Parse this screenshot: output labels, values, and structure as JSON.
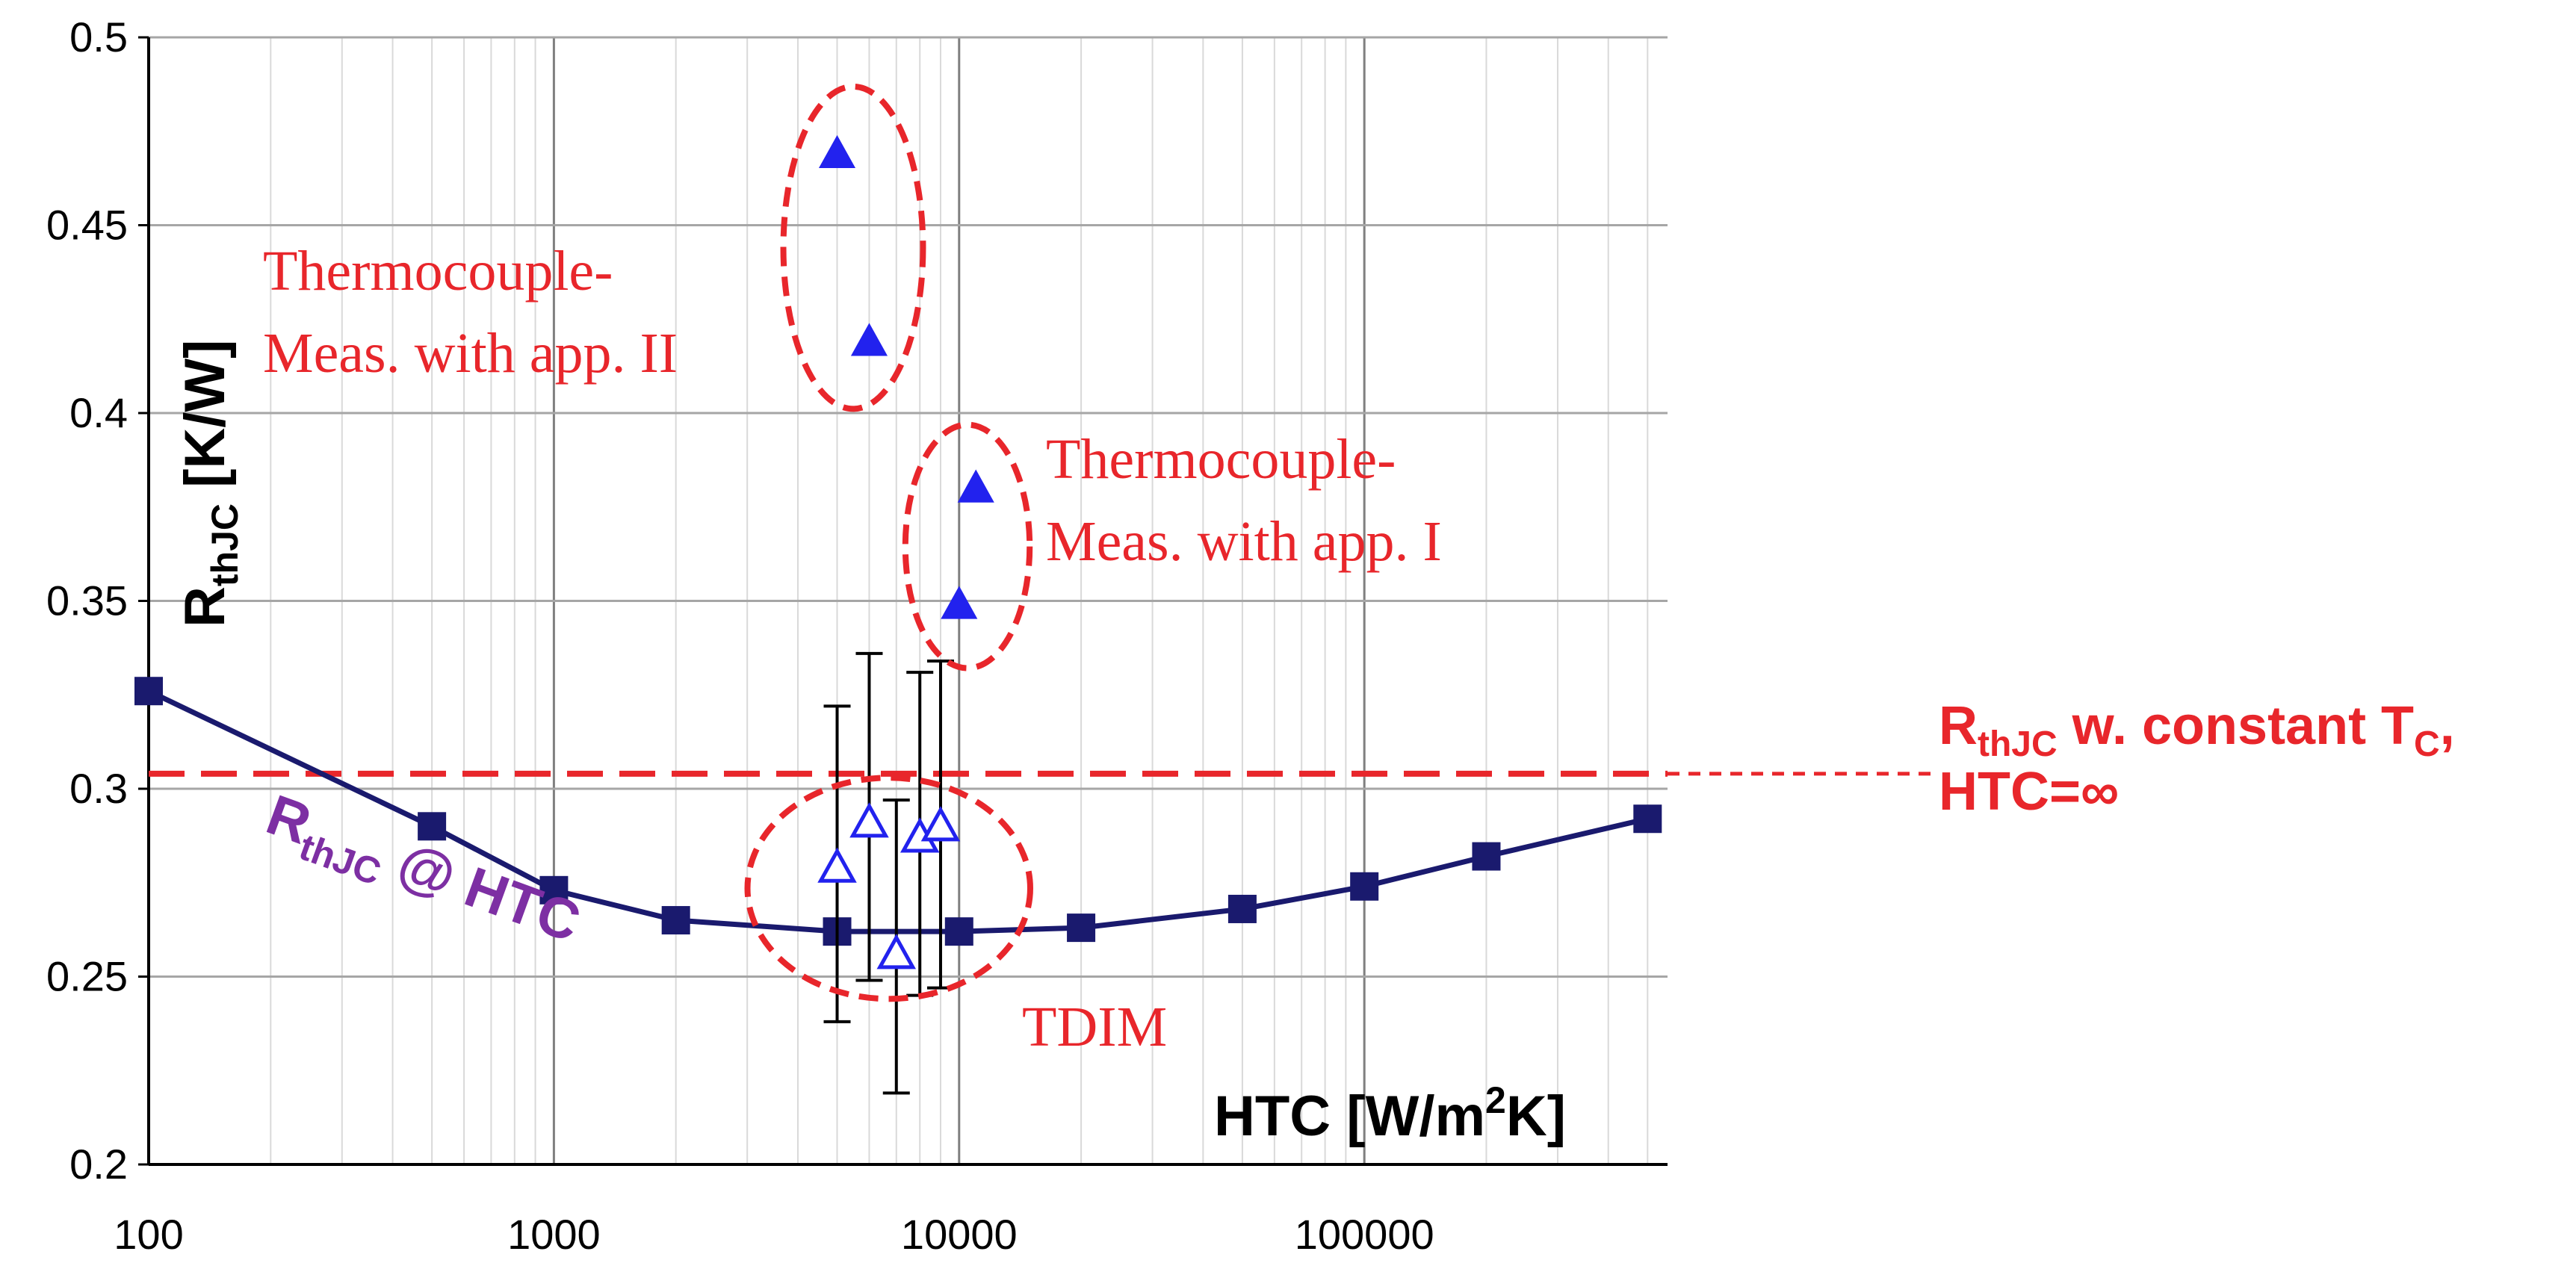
{
  "chart_data": {
    "type": "scatter",
    "x_scale": "log",
    "xlim": [
      100,
      560000
    ],
    "ylim": [
      0.2,
      0.5
    ],
    "x_ticks": [
      "100",
      "1000",
      "10000",
      "100000"
    ],
    "y_ticks": [
      "0.2",
      "0.25",
      "0.3",
      "0.35",
      "0.4",
      "0.45",
      "0.5"
    ],
    "grid": true,
    "xlabel": {
      "main": "HTC [W/m",
      "sup": "2",
      "tail": "K]"
    },
    "ylabel": {
      "main": "R",
      "sub": "thJC",
      "tail": " [K/W]"
    },
    "colors": {
      "line": "#1a1a6e",
      "marker": "#1a1a6e",
      "triangle": "#2222ee",
      "annotation": "#e8262b",
      "curve_label": "#7d2fa3",
      "grid": "#bfbfbf"
    },
    "series": [
      {
        "label": {
          "main": "R",
          "sub": "thJC",
          "tail": " @ HTC"
        },
        "marker": "square",
        "line": true,
        "x": [
          100,
          500,
          1000,
          2000,
          5000,
          10000,
          20000,
          50000,
          100000,
          200000,
          500000
        ],
        "y": [
          0.326,
          0.29,
          0.273,
          0.265,
          0.262,
          0.262,
          0.263,
          0.268,
          0.274,
          0.282,
          0.292
        ]
      },
      {
        "label": "TDIM",
        "marker": "triangle-open",
        "x": [
          5000,
          6000,
          7000,
          8000,
          9000
        ],
        "y": [
          0.279,
          0.291,
          0.256,
          0.287,
          0.29
        ],
        "y_low": [
          0.238,
          0.249,
          0.219,
          0.245,
          0.247
        ],
        "y_high": [
          0.322,
          0.336,
          0.297,
          0.331,
          0.334
        ]
      },
      {
        "label": {
          "line1": "Thermocouple-",
          "line2": "Meas. with app. II"
        },
        "marker": "triangle-filled",
        "x": [
          5000,
          6000
        ],
        "y": [
          0.469,
          0.419
        ]
      },
      {
        "label": {
          "line1": "Thermocouple-",
          "line2": "Meas. with app. I"
        },
        "marker": "triangle-filled",
        "x": [
          11000,
          10000
        ],
        "y": [
          0.38,
          0.349
        ]
      }
    ],
    "reference_line": {
      "y": 0.304,
      "style": "dashed",
      "label": {
        "line1_main": "R",
        "line1_sub": "thJC",
        "line1_mid": " w. constant T",
        "line1_sub2": "C",
        "line1_end": ",",
        "line2": "HTC=∞"
      }
    }
  }
}
